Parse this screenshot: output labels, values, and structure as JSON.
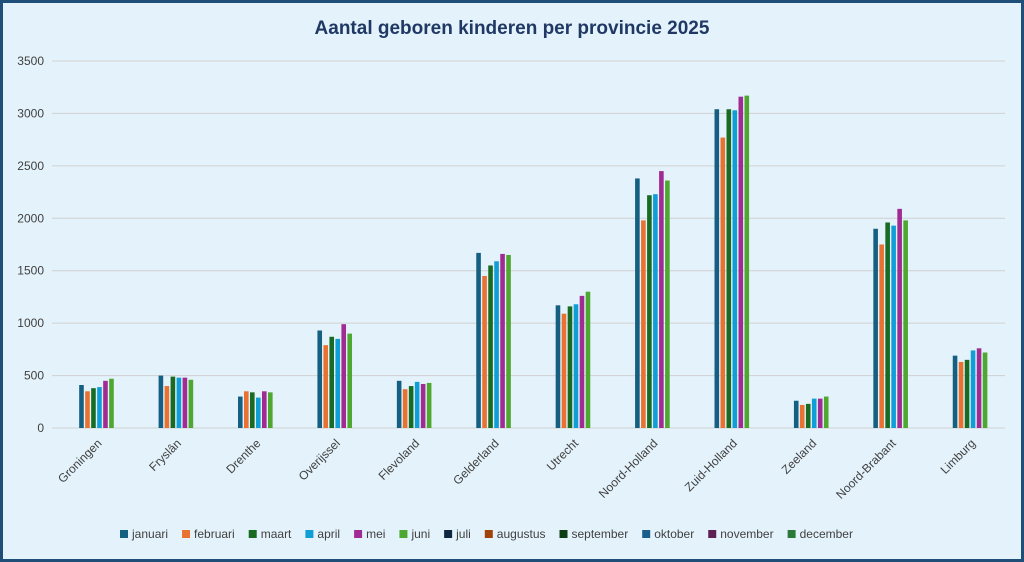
{
  "chart_data": {
    "type": "bar",
    "title": "Aantal geboren kinderen per provincie 2025",
    "xlabel": "",
    "ylabel": "",
    "ylim": [
      0,
      3500
    ],
    "yticks": [
      0,
      500,
      1000,
      1500,
      2000,
      2500,
      3000,
      3500
    ],
    "grid": true,
    "legend_position": "bottom",
    "categories": [
      "Groningen",
      "Fryslân",
      "Drenthe",
      "Overijssel",
      "Flevoland",
      "Gelderland",
      "Utrecht",
      "Noord-Holland",
      "Zuid-Holland",
      "Zeeland",
      "Noord-Brabant",
      "Limburg"
    ],
    "series": [
      {
        "name": "januari",
        "color": "#156082",
        "values": [
          410,
          500,
          300,
          930,
          450,
          1670,
          1170,
          2380,
          3040,
          260,
          1900,
          690
        ]
      },
      {
        "name": "februari",
        "color": "#e97132",
        "values": [
          350,
          400,
          350,
          790,
          370,
          1450,
          1090,
          1980,
          2770,
          220,
          1750,
          630
        ]
      },
      {
        "name": "maart",
        "color": "#196b24",
        "values": [
          380,
          490,
          340,
          870,
          400,
          1550,
          1160,
          2220,
          3040,
          230,
          1960,
          650
        ]
      },
      {
        "name": "april",
        "color": "#0f9ed5",
        "values": [
          390,
          480,
          290,
          850,
          440,
          1590,
          1180,
          2230,
          3030,
          280,
          1930,
          740
        ]
      },
      {
        "name": "mei",
        "color": "#a02b93",
        "values": [
          450,
          480,
          350,
          990,
          420,
          1660,
          1260,
          2450,
          3160,
          280,
          2090,
          760
        ]
      },
      {
        "name": "juni",
        "color": "#4ea72e",
        "values": [
          470,
          460,
          340,
          900,
          430,
          1650,
          1300,
          2360,
          3170,
          300,
          1980,
          720
        ]
      },
      {
        "name": "juli",
        "color": "#0e2841",
        "values": [
          null,
          null,
          null,
          null,
          null,
          null,
          null,
          null,
          null,
          null,
          null,
          null
        ]
      },
      {
        "name": "augustus",
        "color": "#a0430a",
        "values": [
          null,
          null,
          null,
          null,
          null,
          null,
          null,
          null,
          null,
          null,
          null,
          null
        ]
      },
      {
        "name": "september",
        "color": "#0b3f14",
        "values": [
          null,
          null,
          null,
          null,
          null,
          null,
          null,
          null,
          null,
          null,
          null,
          null
        ]
      },
      {
        "name": "oktober",
        "color": "#1a5d8a",
        "values": [
          null,
          null,
          null,
          null,
          null,
          null,
          null,
          null,
          null,
          null,
          null,
          null
        ]
      },
      {
        "name": "november",
        "color": "#5c1f56",
        "values": [
          null,
          null,
          null,
          null,
          null,
          null,
          null,
          null,
          null,
          null,
          null,
          null
        ]
      },
      {
        "name": "december",
        "color": "#2c7a3a",
        "values": [
          null,
          null,
          null,
          null,
          null,
          null,
          null,
          null,
          null,
          null,
          null,
          null
        ]
      }
    ]
  }
}
